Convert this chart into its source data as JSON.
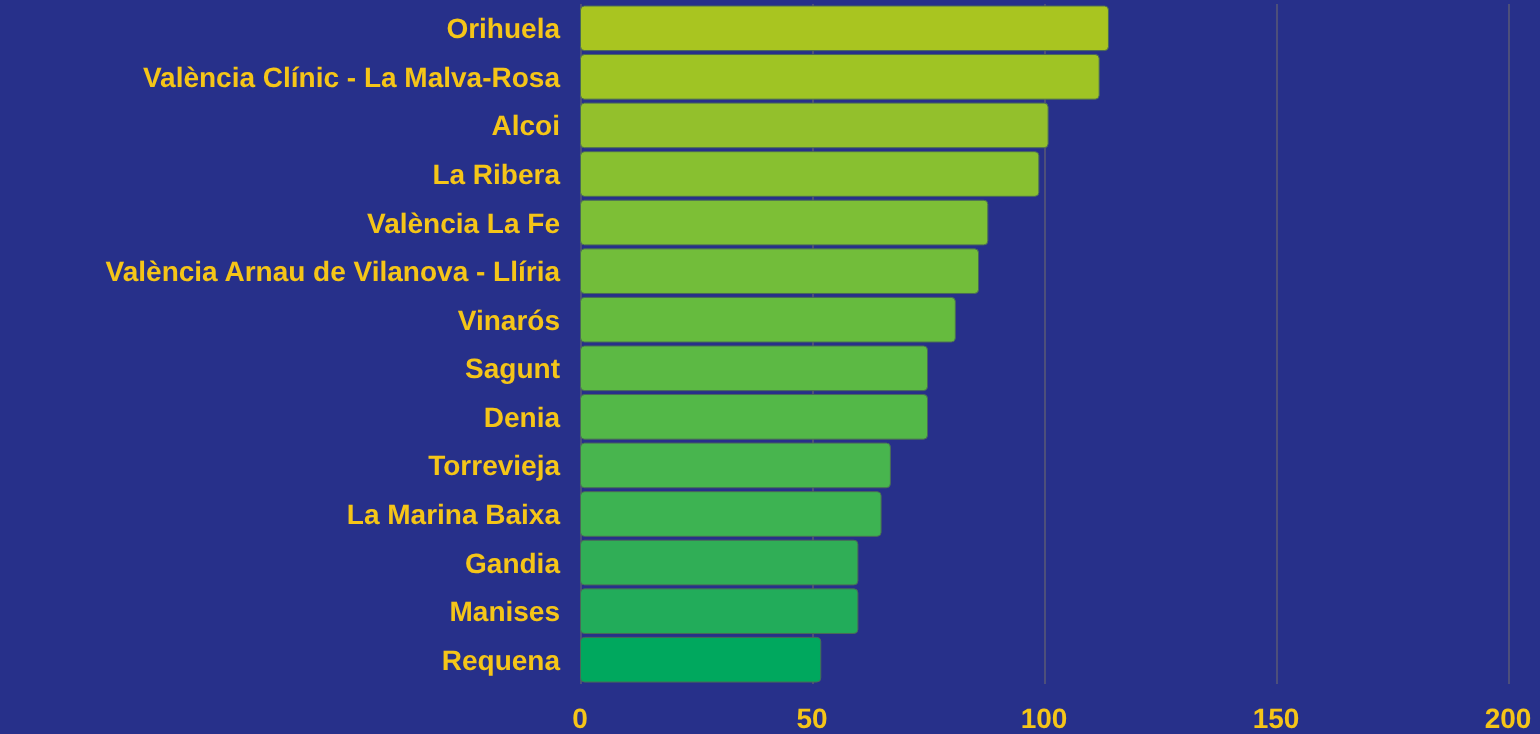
{
  "chart_data": {
    "type": "bar",
    "orientation": "horizontal",
    "categories": [
      "Orihuela",
      "València Clínic - La Malva-Rosa",
      "Alcoi",
      "La Ribera",
      "València La Fe",
      "València Arnau de Vilanova - Llíria",
      "Vinarós",
      "Sagunt",
      "Denia",
      "Torrevieja",
      "La Marina Baixa",
      "Gandia",
      "Manises",
      "Requena"
    ],
    "values": [
      114,
      112,
      101,
      99,
      88,
      86,
      81,
      75,
      75,
      67,
      65,
      60,
      60,
      52
    ],
    "colors": [
      "#a9c520",
      "#9fc424",
      "#93c02c",
      "#88c030",
      "#7dbf36",
      "#72bd3a",
      "#66bb3e",
      "#5cb944",
      "#53b848",
      "#48b54e",
      "#3db352",
      "#30ae56",
      "#22ac5a",
      "#00a85e"
    ],
    "xlim": [
      0,
      200
    ],
    "xticks": [
      0,
      50,
      100,
      150,
      200
    ],
    "grid": "x"
  }
}
